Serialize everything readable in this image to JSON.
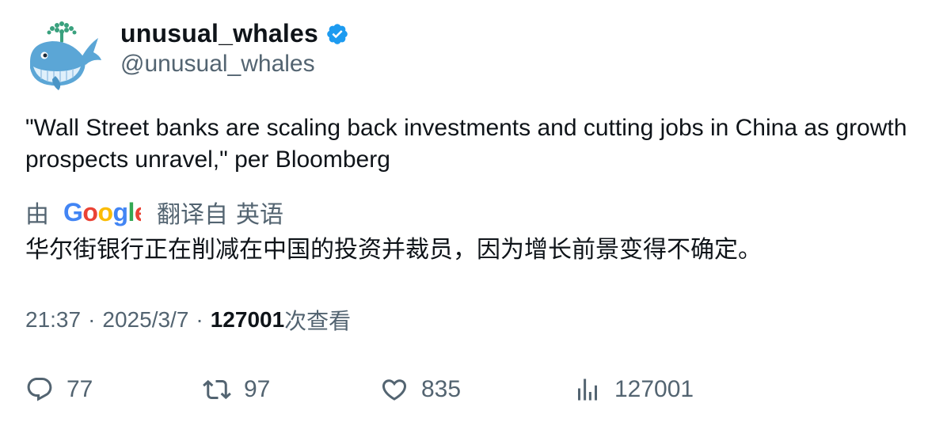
{
  "author": {
    "display_name": "unusual_whales",
    "handle": "@unusual_whales",
    "verified": true,
    "avatar_icon": "whale-avatar-icon",
    "verified_color": "#1d9bf0"
  },
  "tweet": {
    "text": "\"Wall Street banks are scaling back investments and cutting jobs in China as growth prospects unravel,\" per Bloomberg"
  },
  "translation": {
    "by_label": "由",
    "provider_icon": "google-logo",
    "from_label": "翻译自",
    "language": "英语",
    "text": "华尔街银行正在削减在中国的投资并裁员，因为增长前景变得不确定。"
  },
  "meta": {
    "time": "21:37",
    "separator": "·",
    "date": "2025/3/7",
    "views_count": "127001",
    "views_label": "次查看"
  },
  "actions": {
    "replies": "77",
    "retweets": "97",
    "likes": "835",
    "views": "127001"
  },
  "colors": {
    "text_primary": "#0f1419",
    "text_secondary": "#536471",
    "accent": "#1d9bf0"
  }
}
